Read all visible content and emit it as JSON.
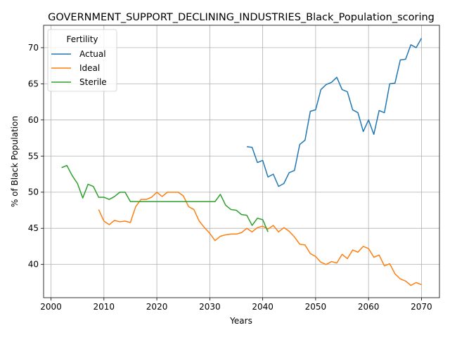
{
  "chart_data": {
    "type": "line",
    "title": "GOVERNMENT_SUPPORT_DECLINING_INDUSTRIES_Black_Population_scoring",
    "xlabel": "Years",
    "ylabel": "% of Black Population",
    "xlim": [
      1998.6,
      2073.4
    ],
    "ylim": [
      35.4,
      73.1
    ],
    "xticks": [
      2000,
      2010,
      2020,
      2030,
      2040,
      2050,
      2060,
      2070
    ],
    "yticks": [
      40,
      45,
      50,
      55,
      60,
      65,
      70
    ],
    "grid": true,
    "legend": {
      "title": "Fertility",
      "placement": "top-left"
    },
    "series": [
      {
        "name": "Actual",
        "color": "#1f77b4",
        "x": [
          2037,
          2038,
          2039,
          2040,
          2041,
          2042,
          2043,
          2044,
          2045,
          2046,
          2047,
          2048,
          2049,
          2050,
          2051,
          2052,
          2053,
          2054,
          2055,
          2056,
          2057,
          2058,
          2059,
          2060,
          2061,
          2062,
          2063,
          2064,
          2065,
          2066,
          2067,
          2068,
          2069,
          2070
        ],
        "y": [
          56.3,
          56.2,
          54.1,
          54.4,
          52.1,
          52.5,
          50.8,
          51.2,
          52.7,
          53.0,
          56.6,
          57.2,
          61.2,
          61.4,
          64.2,
          64.9,
          65.2,
          65.9,
          64.2,
          63.9,
          61.4,
          61.0,
          58.4,
          60.0,
          58.0,
          61.3,
          61.0,
          65.0,
          65.1,
          68.3,
          68.4,
          70.4,
          70.0,
          71.3
        ]
      },
      {
        "name": "Ideal",
        "color": "#ff7f0e",
        "x": [
          2009,
          2010,
          2011,
          2012,
          2013,
          2014,
          2015,
          2016,
          2017,
          2018,
          2019,
          2020,
          2021,
          2022,
          2023,
          2024,
          2025,
          2026,
          2027,
          2028,
          2029,
          2030,
          2031,
          2032,
          2033,
          2034,
          2035,
          2036,
          2037,
          2038,
          2039,
          2040,
          2041,
          2042,
          2043,
          2044,
          2045,
          2046,
          2047,
          2048,
          2049,
          2050,
          2051,
          2052,
          2053,
          2054,
          2055,
          2056,
          2057,
          2058,
          2059,
          2060,
          2061,
          2062,
          2063,
          2064,
          2065,
          2066,
          2067,
          2068,
          2069,
          2070
        ],
        "y": [
          47.6,
          46.0,
          45.5,
          46.1,
          45.9,
          46.0,
          45.8,
          48.0,
          49.0,
          49.0,
          49.3,
          50.0,
          49.4,
          50.0,
          50.0,
          50.0,
          49.5,
          48.0,
          47.6,
          46.0,
          45.1,
          44.3,
          43.3,
          43.9,
          44.1,
          44.2,
          44.2,
          44.4,
          45.0,
          44.5,
          45.1,
          45.3,
          44.9,
          45.4,
          44.5,
          45.1,
          44.6,
          43.8,
          42.8,
          42.7,
          41.5,
          41.1,
          40.3,
          40.0,
          40.4,
          40.2,
          41.4,
          40.8,
          42.0,
          41.7,
          42.5,
          42.2,
          41.0,
          41.3,
          39.8,
          40.1,
          38.7,
          38.0,
          37.7,
          37.1,
          37.5,
          37.2
        ]
      },
      {
        "name": "Sterile",
        "color": "#2ca02c",
        "x": [
          2002,
          2003,
          2004,
          2005,
          2006,
          2007,
          2008,
          2009,
          2010,
          2011,
          2012,
          2013,
          2014,
          2015,
          2016,
          2017,
          2018,
          2019,
          2020,
          2021,
          2022,
          2023,
          2024,
          2025,
          2026,
          2027,
          2028,
          2029,
          2030,
          2031,
          2032,
          2033,
          2034,
          2035,
          2036,
          2037,
          2038,
          2039,
          2040,
          2041
        ],
        "y": [
          53.4,
          53.7,
          52.3,
          51.2,
          49.2,
          51.1,
          50.8,
          49.3,
          49.3,
          49.0,
          49.4,
          50.0,
          50.0,
          48.7,
          48.7,
          48.7,
          48.7,
          48.7,
          48.7,
          48.7,
          48.7,
          48.7,
          48.7,
          48.7,
          48.7,
          48.7,
          48.7,
          48.7,
          48.7,
          48.7,
          49.7,
          48.2,
          47.6,
          47.5,
          46.9,
          46.8,
          45.4,
          46.4,
          46.2,
          44.5
        ]
      }
    ]
  }
}
